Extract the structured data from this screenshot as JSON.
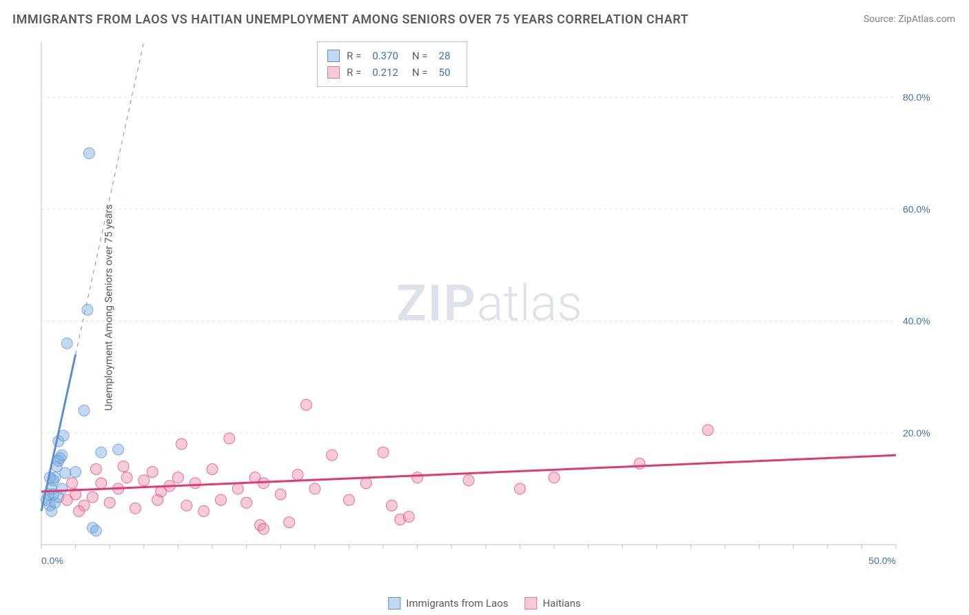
{
  "title": "IMMIGRANTS FROM LAOS VS HAITIAN UNEMPLOYMENT AMONG SENIORS OVER 75 YEARS CORRELATION CHART",
  "source": "Source: ZipAtlas.com",
  "y_axis_label": "Unemployment Among Seniors over 75 years",
  "watermark_bold": "ZIP",
  "watermark_light": "atlas",
  "chart": {
    "type": "scatter",
    "background_color": "#ffffff",
    "grid_color": "#e3e3e3",
    "axis_color": "#bfbfbf",
    "axis_label_color": "#3b6fb5",
    "xlim": [
      0,
      50
    ],
    "ylim": [
      0,
      90
    ],
    "y_ticks": [
      20,
      40,
      60,
      80
    ],
    "y_tick_labels": [
      "20.0%",
      "40.0%",
      "60.0%",
      "80.0%"
    ],
    "x_ticks": [
      0,
      50
    ],
    "x_tick_labels": [
      "0.0%",
      "50.0%"
    ],
    "x_minor_tick_step": 2,
    "marker_radius": 8,
    "marker_opacity": 0.45,
    "trend_line_width": 2,
    "trend_dash_width": 1.2
  },
  "series": [
    {
      "name": "Immigrants from Laos",
      "color": "#5a8fc9",
      "fill": "rgba(120,170,225,0.45)",
      "r": "0.370",
      "n": "28",
      "trend": {
        "slope": 14.0,
        "intercept": 6.0,
        "solid_x_max": 2.0
      },
      "points": [
        [
          0.3,
          8
        ],
        [
          0.4,
          9
        ],
        [
          0.5,
          7
        ],
        [
          0.6,
          10
        ],
        [
          0.7,
          11.5
        ],
        [
          0.8,
          12
        ],
        [
          0.9,
          14
        ],
        [
          1.0,
          15
        ],
        [
          1.1,
          15.5
        ],
        [
          1.2,
          16
        ],
        [
          1.0,
          18.5
        ],
        [
          1.3,
          19.5
        ],
        [
          2.0,
          13
        ],
        [
          2.5,
          24
        ],
        [
          3.5,
          16.5
        ],
        [
          4.5,
          17
        ],
        [
          2.7,
          42
        ],
        [
          2.8,
          70
        ],
        [
          1.5,
          36
        ],
        [
          0.6,
          6
        ],
        [
          0.8,
          7.5
        ],
        [
          1.0,
          8.5
        ],
        [
          1.2,
          10
        ],
        [
          0.5,
          12
        ],
        [
          3.0,
          3
        ],
        [
          3.2,
          2.5
        ],
        [
          0.7,
          9
        ],
        [
          1.4,
          12.8
        ]
      ]
    },
    {
      "name": "Haitians",
      "color": "#e23a6f",
      "fill": "rgba(235,140,170,0.45)",
      "r": "0.212",
      "n": "50",
      "trend": {
        "slope": 0.13,
        "intercept": 9.5,
        "solid_x_max": 50
      },
      "points": [
        [
          1.5,
          8
        ],
        [
          2.0,
          9
        ],
        [
          2.5,
          7
        ],
        [
          3.0,
          8.5
        ],
        [
          3.5,
          11
        ],
        [
          4.0,
          7.5
        ],
        [
          4.5,
          10
        ],
        [
          5.0,
          12
        ],
        [
          5.5,
          6.5
        ],
        [
          6.0,
          11.5
        ],
        [
          6.5,
          13
        ],
        [
          7.0,
          9.5
        ],
        [
          7.5,
          10.5
        ],
        [
          8.0,
          12
        ],
        [
          8.2,
          18
        ],
        [
          8.5,
          7
        ],
        [
          9.0,
          11
        ],
        [
          9.5,
          6
        ],
        [
          10.0,
          13.5
        ],
        [
          10.5,
          8
        ],
        [
          11.0,
          19
        ],
        [
          11.5,
          10
        ],
        [
          12.0,
          7.5
        ],
        [
          12.5,
          12
        ],
        [
          13.0,
          11
        ],
        [
          14.0,
          9
        ],
        [
          15.0,
          12.5
        ],
        [
          15.5,
          25
        ],
        [
          16.0,
          10
        ],
        [
          17.0,
          16
        ],
        [
          18.0,
          8
        ],
        [
          19.0,
          11
        ],
        [
          20.0,
          16.5
        ],
        [
          20.5,
          7
        ],
        [
          21.0,
          4.5
        ],
        [
          22.0,
          12
        ],
        [
          21.5,
          5
        ],
        [
          25.0,
          11.5
        ],
        [
          28.0,
          10
        ],
        [
          30.0,
          12
        ],
        [
          35.0,
          14.5
        ],
        [
          39.0,
          20.5
        ],
        [
          12.8,
          3.5
        ],
        [
          14.5,
          4
        ],
        [
          3.2,
          13.5
        ],
        [
          4.8,
          14
        ],
        [
          1.8,
          11
        ],
        [
          2.2,
          6
        ],
        [
          6.8,
          8
        ],
        [
          13.0,
          2.8
        ]
      ]
    }
  ],
  "legend": {
    "r_label": "R =",
    "n_label": "N ="
  },
  "bottom_legend": {
    "item1": "Immigrants from Laos",
    "item2": "Haitians"
  }
}
